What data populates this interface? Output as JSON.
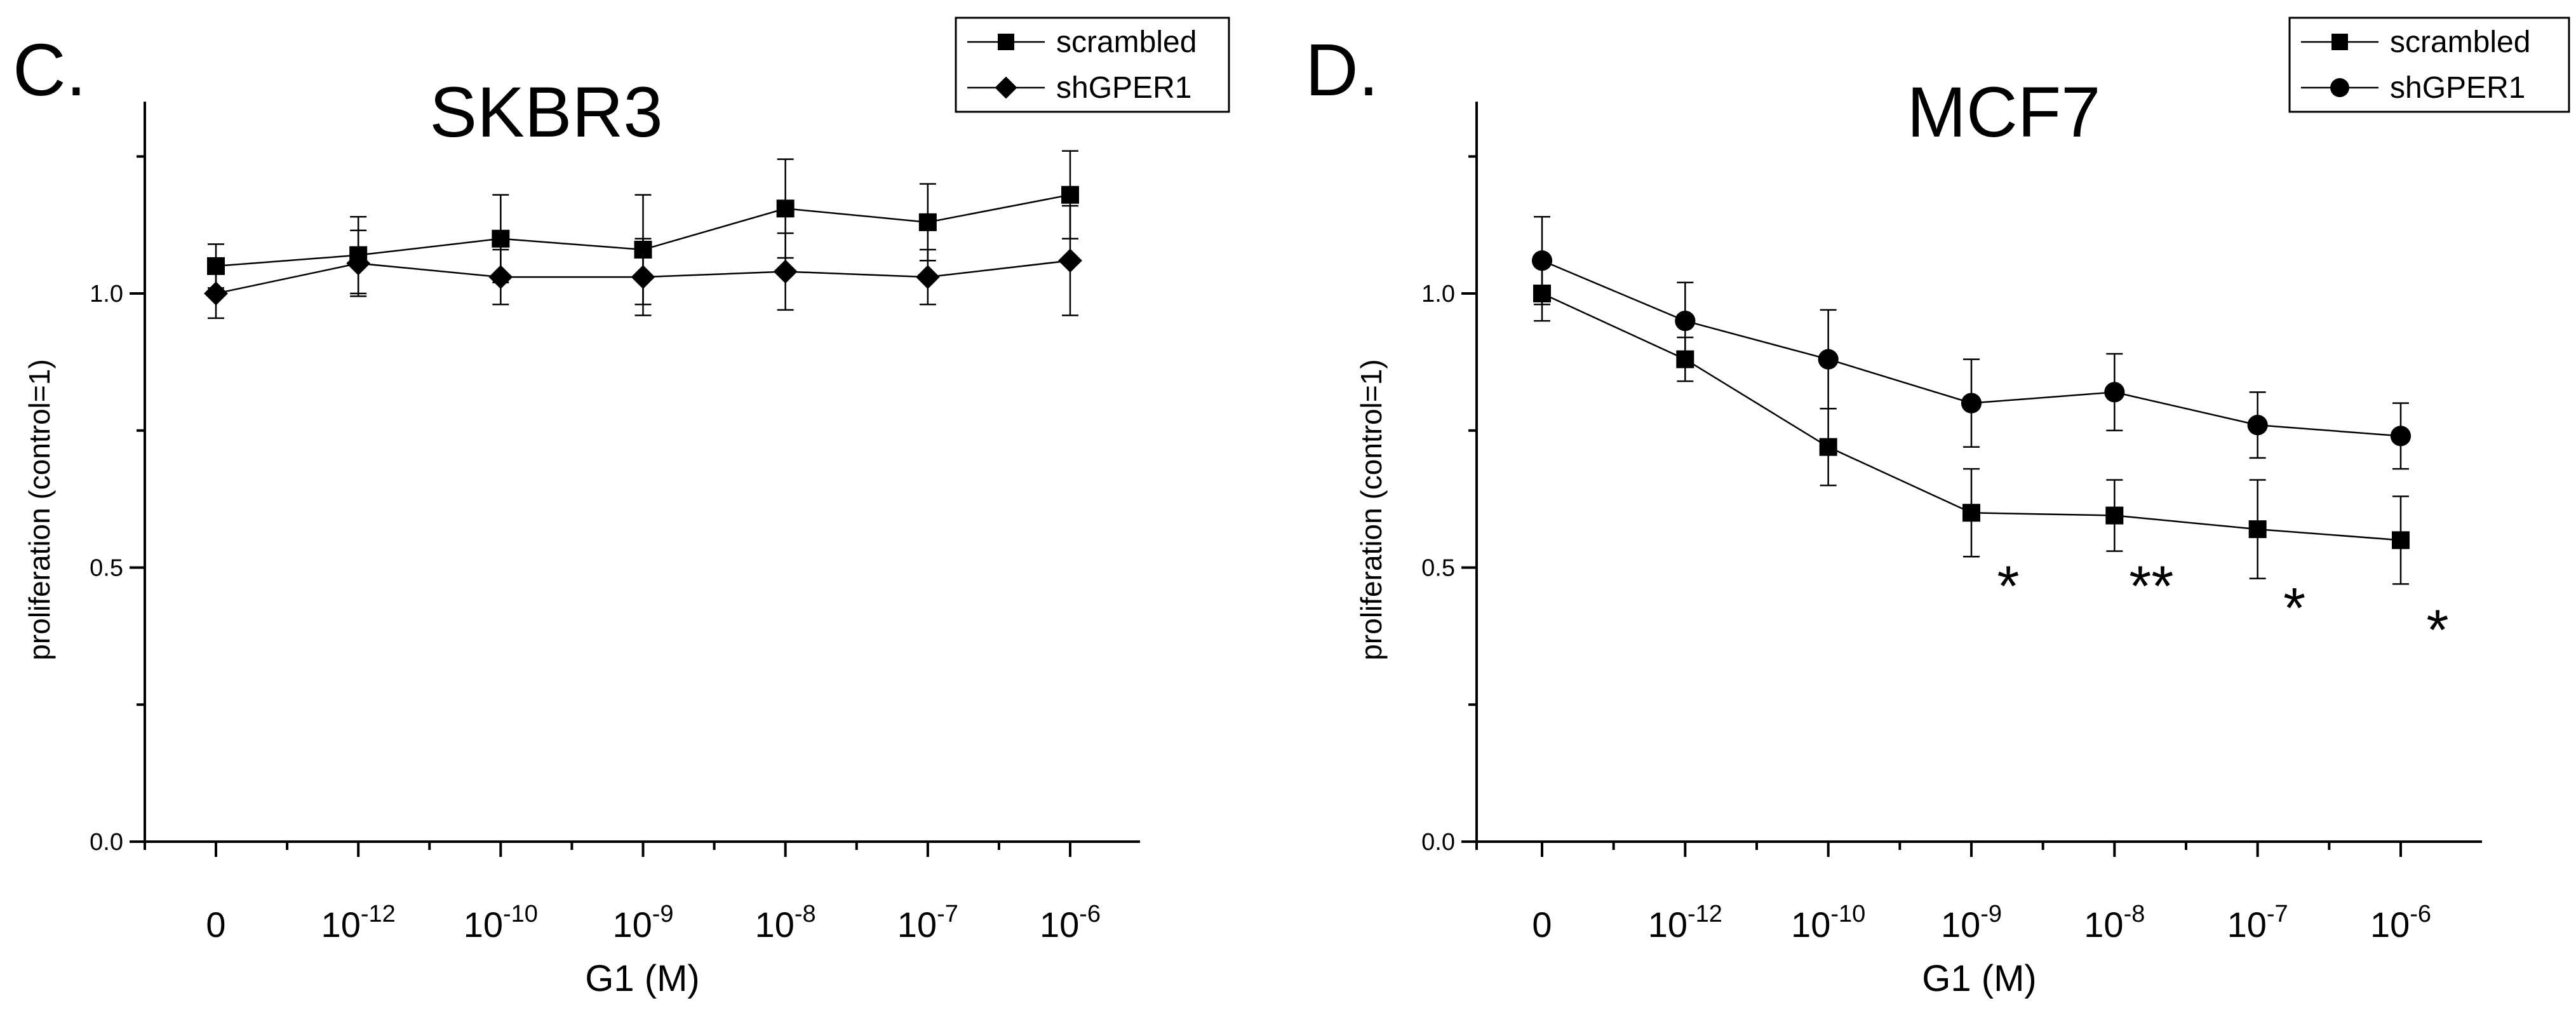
{
  "panels_meta": {
    "left": {
      "letter": "C."
    },
    "right": {
      "letter": "D."
    }
  },
  "chart_data": [
    {
      "type": "line",
      "panel_letter": "C.",
      "title": "SKBR3",
      "xlabel": "G1 (M)",
      "ylabel": "proliferation (control=1)",
      "categories": [
        {
          "base": "0",
          "exp": ""
        },
        {
          "base": "10",
          "exp": "-12"
        },
        {
          "base": "10",
          "exp": "-10"
        },
        {
          "base": "10",
          "exp": "-9"
        },
        {
          "base": "10",
          "exp": "-8"
        },
        {
          "base": "10",
          "exp": "-7"
        },
        {
          "base": "10",
          "exp": "-6"
        }
      ],
      "ylim": [
        0,
        1.35
      ],
      "yticks": [
        "0.0",
        "0.5",
        "1.0"
      ],
      "ytick_values": [
        0,
        0.5,
        1.0
      ],
      "grid": false,
      "legend_position": "top-right",
      "series": [
        {
          "name": "scrambled",
          "marker": "square",
          "values": [
            1.05,
            1.07,
            1.1,
            1.08,
            1.155,
            1.13,
            1.18
          ],
          "errors": [
            0.04,
            0.07,
            0.08,
            0.1,
            0.09,
            0.07,
            0.08
          ]
        },
        {
          "name": "shGPER1",
          "marker": "diamond",
          "values": [
            1.0,
            1.055,
            1.03,
            1.03,
            1.04,
            1.03,
            1.06
          ],
          "errors": [
            0.045,
            0.06,
            0.05,
            0.07,
            0.07,
            0.05,
            0.1
          ]
        }
      ],
      "annotations": []
    },
    {
      "type": "line",
      "panel_letter": "D.",
      "title": "MCF7",
      "xlabel": "G1 (M)",
      "ylabel": "proliferation (control=1)",
      "categories": [
        {
          "base": "0",
          "exp": ""
        },
        {
          "base": "10",
          "exp": "-12"
        },
        {
          "base": "10",
          "exp": "-10"
        },
        {
          "base": "10",
          "exp": "-9"
        },
        {
          "base": "10",
          "exp": "-8"
        },
        {
          "base": "10",
          "exp": "-7"
        },
        {
          "base": "10",
          "exp": "-6"
        }
      ],
      "ylim": [
        0,
        1.35
      ],
      "yticks": [
        "0.0",
        "0.5",
        "1.0"
      ],
      "ytick_values": [
        0,
        0.5,
        1.0
      ],
      "grid": false,
      "legend_position": "top-right",
      "series": [
        {
          "name": "scrambled",
          "marker": "square",
          "values": [
            1.0,
            0.88,
            0.72,
            0.6,
            0.595,
            0.57,
            0.55
          ],
          "errors": [
            0.05,
            0.04,
            0.07,
            0.08,
            0.065,
            0.09,
            0.08
          ]
        },
        {
          "name": "shGPER1",
          "marker": "circle",
          "values": [
            1.06,
            0.95,
            0.88,
            0.8,
            0.82,
            0.76,
            0.74
          ],
          "errors": [
            0.08,
            0.07,
            0.09,
            0.08,
            0.07,
            0.06,
            0.06
          ]
        }
      ],
      "annotations": [
        {
          "category_index": 3,
          "text": "*",
          "y": 0.5
        },
        {
          "category_index": 4,
          "text": "**",
          "y": 0.5
        },
        {
          "category_index": 5,
          "text": "*",
          "y": 0.46
        },
        {
          "category_index": 6,
          "text": "*",
          "y": 0.42
        }
      ]
    }
  ]
}
